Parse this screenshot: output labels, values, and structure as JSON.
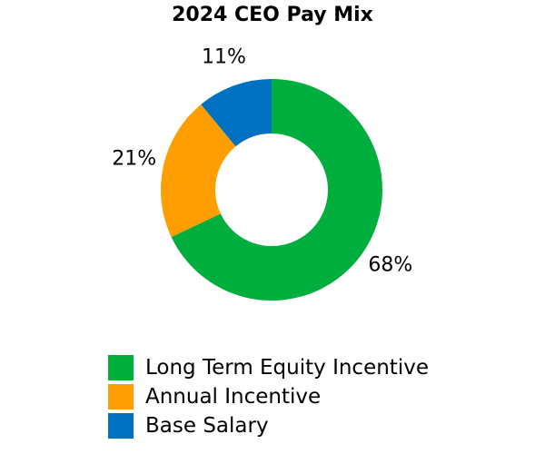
{
  "chart_data": {
    "type": "pie",
    "title": "2024 CEO Pay Mix",
    "donut": true,
    "slices": [
      {
        "name": "Long Term Equity Incentive",
        "value": 68,
        "label": "68%",
        "color": "#00AE3D"
      },
      {
        "name": "Annual Incentive",
        "value": 21,
        "label": "21%",
        "color": "#FF9E00"
      },
      {
        "name": "Base Salary",
        "value": 11,
        "label": "11%",
        "color": "#0070C0"
      }
    ],
    "legend_position": "bottom"
  }
}
